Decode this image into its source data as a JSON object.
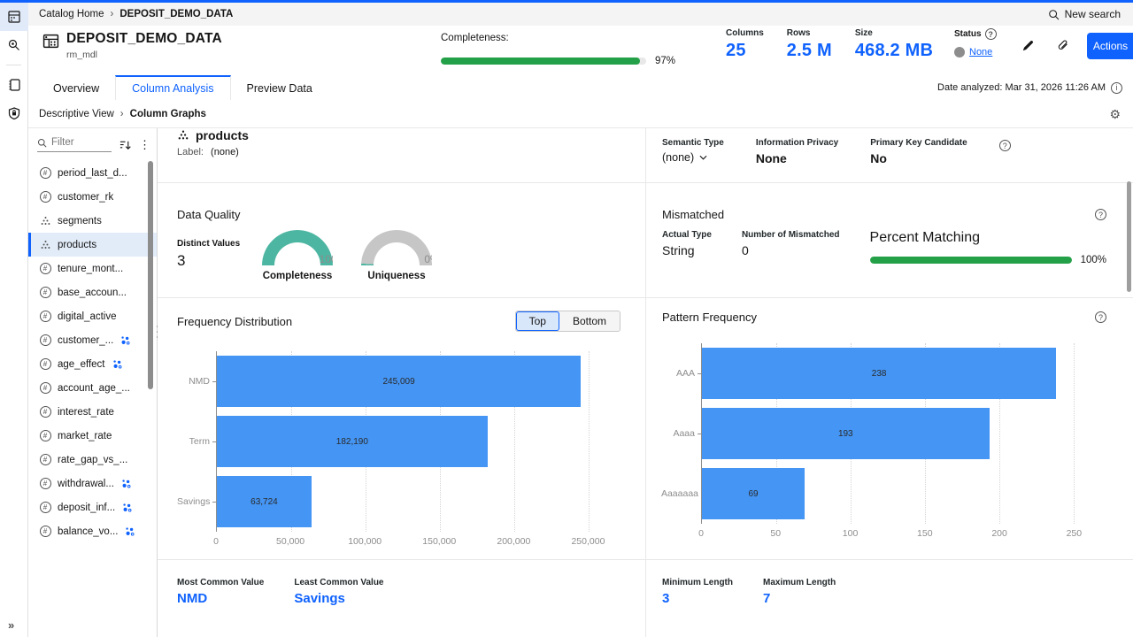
{
  "colors": {
    "accent_blue": "#0f62fe",
    "bar_blue": "#4495f4",
    "progress_green": "#24a148",
    "gauge_teal": "#4db6a2",
    "gauge_gray": "#c6c6c6",
    "selected_row_bg": "#e2ecf9"
  },
  "top_nav": {
    "breadcrumb": [
      "Catalog Home",
      "DEPOSIT_DEMO_DATA"
    ],
    "new_search": "New search"
  },
  "header": {
    "title": "DEPOSIT_DEMO_DATA",
    "subtitle": "rm_mdl",
    "completeness_label": "Completeness:",
    "completeness_value": "97%",
    "completeness_pct": 97,
    "stats": [
      {
        "label": "Columns",
        "value": "25"
      },
      {
        "label": "Rows",
        "value": "2.5 M"
      },
      {
        "label": "Size",
        "value": "468.2 MB"
      }
    ],
    "status_label": "Status",
    "status_value": "None",
    "actions_label": "Actions"
  },
  "tabs": [
    "Overview",
    "Column Analysis",
    "Preview Data"
  ],
  "date_analyzed": "Date analyzed: Mar 31, 2026 11:26 AM",
  "view_breadcrumb": [
    "Descriptive View",
    "Column Graphs"
  ],
  "sidebar": {
    "filter_placeholder": "Filter",
    "items": [
      {
        "label": "period_last_d...",
        "type": "numeric",
        "selected": false,
        "inferred": false
      },
      {
        "label": "customer_rk",
        "type": "numeric",
        "selected": false,
        "inferred": false
      },
      {
        "label": "segments",
        "type": "string",
        "selected": false,
        "inferred": false
      },
      {
        "label": "products",
        "type": "string",
        "selected": true,
        "inferred": false
      },
      {
        "label": "tenure_mont...",
        "type": "numeric",
        "selected": false,
        "inferred": false
      },
      {
        "label": "base_accoun...",
        "type": "numeric",
        "selected": false,
        "inferred": false
      },
      {
        "label": "digital_active",
        "type": "numeric",
        "selected": false,
        "inferred": false
      },
      {
        "label": "customer_...",
        "type": "numeric",
        "selected": false,
        "inferred": true
      },
      {
        "label": "age_effect",
        "type": "numeric",
        "selected": false,
        "inferred": true
      },
      {
        "label": "account_age_...",
        "type": "numeric",
        "selected": false,
        "inferred": false
      },
      {
        "label": "interest_rate",
        "type": "numeric",
        "selected": false,
        "inferred": false
      },
      {
        "label": "market_rate",
        "type": "numeric",
        "selected": false,
        "inferred": false
      },
      {
        "label": "rate_gap_vs_...",
        "type": "numeric",
        "selected": false,
        "inferred": false
      },
      {
        "label": "withdrawal...",
        "type": "numeric",
        "selected": false,
        "inferred": true
      },
      {
        "label": "deposit_inf...",
        "type": "numeric",
        "selected": false,
        "inferred": true
      },
      {
        "label": "balance_vo...",
        "type": "numeric",
        "selected": false,
        "inferred": true
      }
    ]
  },
  "column_detail": {
    "name": "products",
    "label_key": "Label:",
    "label_value": "(none)",
    "semantic_type": {
      "label": "Semantic Type",
      "value": "(none)"
    },
    "information_privacy": {
      "label": "Information Privacy",
      "value": "None"
    },
    "primary_key": {
      "label": "Primary Key Candidate",
      "value": "No"
    }
  },
  "data_quality": {
    "title": "Data Quality",
    "distinct_label": "Distinct Values",
    "distinct_value": "3",
    "gauges": [
      {
        "label": "Completeness",
        "value": "100%",
        "pct": 100
      },
      {
        "label": "Uniqueness",
        "value": "0%",
        "pct": 0
      }
    ]
  },
  "mismatched": {
    "title": "Mismatched",
    "actual_type": {
      "label": "Actual Type",
      "value": "String"
    },
    "num_mismatched": {
      "label": "Number of Mismatched",
      "value": "0"
    },
    "percent_matching": {
      "label": "Percent Matching",
      "value": "100%",
      "pct": 100
    }
  },
  "frequency": {
    "title": "Frequency Distribution",
    "toggle": [
      "Top",
      "Bottom"
    ]
  },
  "pattern": {
    "title": "Pattern Frequency"
  },
  "chart_data": [
    {
      "type": "bar",
      "orientation": "horizontal",
      "title": "Frequency Distribution",
      "categories": [
        "NMD",
        "Term",
        "Savings"
      ],
      "values": [
        245009,
        182190,
        63724
      ],
      "value_labels": [
        "245,009",
        "182,190",
        "63,724"
      ],
      "xlim": [
        0,
        250000
      ],
      "x_ticks": [
        "0",
        "50,000",
        "100,000",
        "150,000",
        "200,000",
        "250,000"
      ],
      "grid": true,
      "bar_color": "#4495f4"
    },
    {
      "type": "bar",
      "orientation": "horizontal",
      "title": "Pattern Frequency",
      "categories": [
        "AAA",
        "Aaaa",
        "Aaaaaaa"
      ],
      "values": [
        238,
        193,
        69
      ],
      "value_labels": [
        "238",
        "193",
        "69"
      ],
      "xlim": [
        0,
        250
      ],
      "x_ticks": [
        "0",
        "50",
        "100",
        "150",
        "200",
        "250"
      ],
      "grid": true,
      "bar_color": "#4495f4"
    }
  ],
  "footer_stats": {
    "left": [
      {
        "label": "Most Common Value",
        "value": "NMD"
      },
      {
        "label": "Least Common Value",
        "value": "Savings"
      }
    ],
    "right": [
      {
        "label": "Minimum Length",
        "value": "3"
      },
      {
        "label": "Maximum Length",
        "value": "7"
      }
    ]
  }
}
